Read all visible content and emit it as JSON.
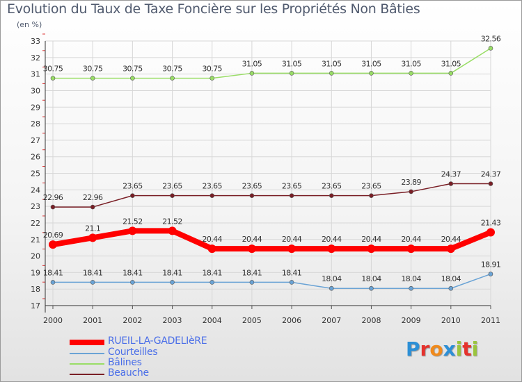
{
  "chart_data": {
    "type": "line",
    "title": "Evolution du Taux de Taxe Foncière sur les Propriétés Non Bâties",
    "ylabel": "(en %)",
    "xlabel": "",
    "categories": [
      "2000",
      "2001",
      "2002",
      "2003",
      "2004",
      "2005",
      "2006",
      "2007",
      "2008",
      "2009",
      "2010",
      "2011"
    ],
    "ylim": [
      17,
      33
    ],
    "yticks": [
      "17",
      "18",
      "19",
      "20",
      "21",
      "22",
      "23",
      "24",
      "25",
      "26",
      "27",
      "28",
      "29",
      "30",
      "31",
      "32",
      "33"
    ],
    "series": [
      {
        "name": "RUEIL-LA-GADELIèRE",
        "color": "#ff0000",
        "values": [
          20.69,
          21.1,
          21.52,
          21.52,
          20.44,
          20.44,
          20.44,
          20.44,
          20.44,
          20.44,
          20.44,
          21.43
        ],
        "labels": [
          "20.69",
          "21.1",
          "21.52",
          "21.52",
          "20.44",
          "20.44",
          "20.44",
          "20.44",
          "20.44",
          "20.44",
          "20.44",
          "21.43"
        ]
      },
      {
        "name": "Courteilles",
        "color": "#6aa3d5",
        "values": [
          18.41,
          18.41,
          18.41,
          18.41,
          18.41,
          18.41,
          18.41,
          18.04,
          18.04,
          18.04,
          18.04,
          18.91
        ],
        "labels": [
          "18.41",
          "18.41",
          "18.41",
          "18.41",
          "18.41",
          "18.41",
          "18.41",
          "18.04",
          "18.04",
          "18.04",
          "18.04",
          "18.91"
        ]
      },
      {
        "name": "Bâlines",
        "color": "#99dd66",
        "values": [
          30.75,
          30.75,
          30.75,
          30.75,
          30.75,
          31.05,
          31.05,
          31.05,
          31.05,
          31.05,
          31.05,
          32.56
        ],
        "labels": [
          "30.75",
          "30.75",
          "30.75",
          "30.75",
          "30.75",
          "31.05",
          "31.05",
          "31.05",
          "31.05",
          "31.05",
          "31.05",
          "32.56"
        ]
      },
      {
        "name": "Beauche",
        "color": "#7a1f26",
        "values": [
          22.96,
          22.96,
          23.65,
          23.65,
          23.65,
          23.65,
          23.65,
          23.65,
          23.65,
          23.89,
          24.37,
          24.37
        ],
        "labels": [
          "22.96",
          "22.96",
          "23.65",
          "23.65",
          "23.65",
          "23.65",
          "23.65",
          "23.65",
          "23.65",
          "23.89",
          "24.37",
          "24.37"
        ]
      }
    ],
    "grid": true,
    "legend": "bottom-left"
  },
  "logo": {
    "letters": [
      "P",
      "r",
      "o",
      "x",
      "i",
      "t",
      "i"
    ],
    "colors": [
      "#2c8fd6",
      "#e5322d",
      "#f08a1c",
      "#2c8fd6",
      "#9bc53d",
      "#e5322d",
      "#9bc53d"
    ]
  }
}
